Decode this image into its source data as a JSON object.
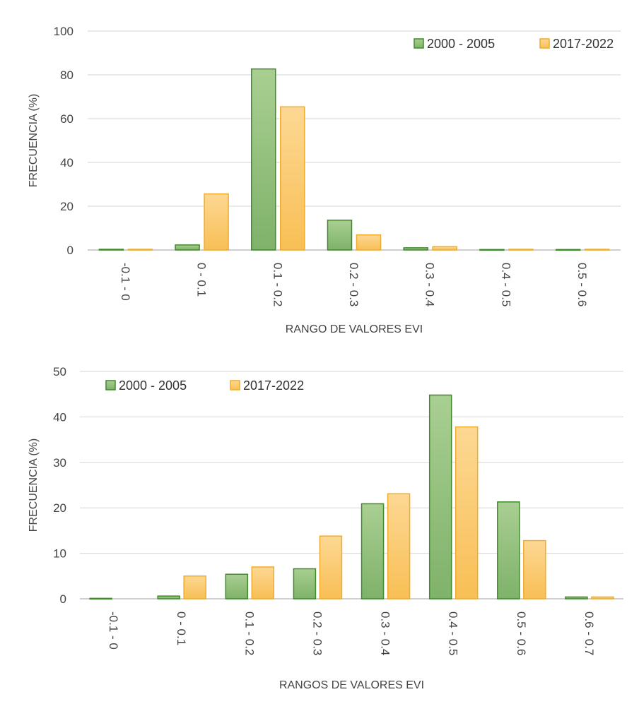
{
  "colors": {
    "series_a_fill": "#7fb26a",
    "series_a_fill_light": "#a9cf92",
    "series_a_stroke": "#3f8a2a",
    "series_b_fill": "#f8bf55",
    "series_b_fill_light": "#fdd893",
    "series_b_stroke": "#f0ac2c",
    "grid": "#d6d6d6",
    "axis": "#bfbfbf"
  },
  "chart_data": [
    {
      "type": "bar",
      "title": "",
      "xlabel": "RANGO DE VALORES EVI",
      "ylabel": "FRECUENCIA (%)",
      "ylim": [
        0,
        100
      ],
      "yticks": [
        "0",
        "20",
        "40",
        "60",
        "80",
        "100"
      ],
      "grid": true,
      "legend_position": "top-right",
      "categories": [
        "-0.1 - 0",
        "0 - 0.1",
        "0.1 - 0.2",
        "0.2 - 0.3",
        "0.3 - 0.4",
        "0.4 - 0.5",
        "0.5 - 0.6"
      ],
      "series": [
        {
          "name": "2000 - 2005",
          "values": [
            0.3,
            2.3,
            82.7,
            13.6,
            1.0,
            0.2,
            0.2
          ]
        },
        {
          "name": "2017-2022",
          "values": [
            0.3,
            25.6,
            65.4,
            6.9,
            1.5,
            0.3,
            0.3
          ]
        }
      ]
    },
    {
      "type": "bar",
      "title": "",
      "xlabel": "RANGOS DE VALORES EVI",
      "ylabel": "FRECUENCIA (%)",
      "ylim": [
        0,
        50
      ],
      "yticks": [
        "0",
        "10",
        "20",
        "30",
        "40",
        "50"
      ],
      "grid": true,
      "legend_position": "top-left",
      "categories": [
        "-0.1 - 0",
        "0 - 0.1",
        "0.1 - 0.2",
        "0.2 - 0.3",
        "0.3 - 0.4",
        "0.4 - 0.5",
        "0.5 - 0.6",
        "0.6 - 0.7"
      ],
      "series": [
        {
          "name": "2000 - 2005",
          "values": [
            0.1,
            0.6,
            5.4,
            6.6,
            20.9,
            44.8,
            21.3,
            0.4
          ]
        },
        {
          "name": "2017-2022",
          "values": [
            0.0,
            5.0,
            7.0,
            13.8,
            23.1,
            37.8,
            12.8,
            0.4
          ]
        }
      ]
    }
  ]
}
